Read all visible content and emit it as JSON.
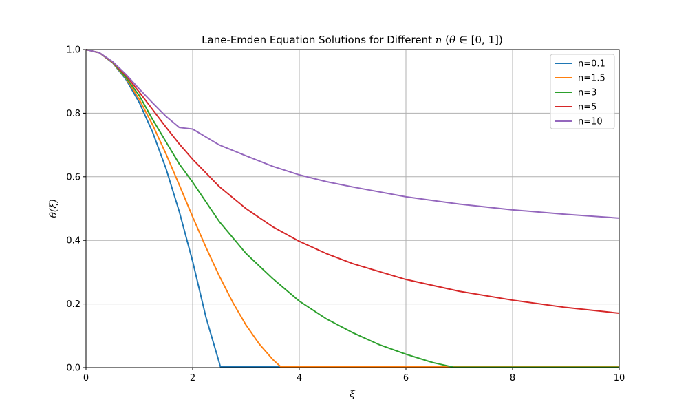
{
  "chart_data": {
    "type": "line",
    "title": "Lane-Emden Equation Solutions for Different n (θ ∈ [0, 1])",
    "title_parts": {
      "main": "Lane-Emden Equation Solutions for Different ",
      "var": "n",
      "range_open": " (",
      "theta": "θ",
      "range_close": " ∈ [0, 1])"
    },
    "xlabel": "ξ",
    "ylabel": "θ(ξ)",
    "xlim": [
      0,
      10
    ],
    "ylim": [
      0,
      1
    ],
    "xticks": [
      "0",
      "2",
      "4",
      "6",
      "8",
      "10"
    ],
    "yticks": [
      "0.0",
      "0.2",
      "0.4",
      "0.6",
      "0.8",
      "1.0"
    ],
    "grid": true,
    "legend_position": "top-right",
    "series": [
      {
        "name": "n=0.1",
        "color": "#1f77b4",
        "x": [
          0,
          0.25,
          0.5,
          0.75,
          1.0,
          1.25,
          1.5,
          1.75,
          2.0,
          2.25,
          2.5,
          2.52,
          3,
          4,
          5,
          6,
          7,
          8,
          9,
          10
        ],
        "y": [
          1.0,
          0.99,
          0.958,
          0.906,
          0.833,
          0.74,
          0.626,
          0.49,
          0.334,
          0.158,
          0.015,
          0.003,
          0.003,
          0.003,
          0.003,
          0.003,
          0.003,
          0.003,
          0.003,
          0.003
        ]
      },
      {
        "name": "n=1.5",
        "color": "#ff7f0e",
        "x": [
          0,
          0.25,
          0.5,
          0.75,
          1.0,
          1.25,
          1.5,
          1.75,
          2.0,
          2.25,
          2.5,
          2.75,
          3.0,
          3.25,
          3.5,
          3.65,
          4,
          5,
          6,
          7,
          8,
          9,
          10
        ],
        "y": [
          1.0,
          0.99,
          0.959,
          0.91,
          0.843,
          0.763,
          0.672,
          0.574,
          0.474,
          0.378,
          0.288,
          0.206,
          0.134,
          0.074,
          0.026,
          0.003,
          0.003,
          0.003,
          0.003,
          0.003,
          0.003,
          0.003,
          0.003
        ]
      },
      {
        "name": "n=3",
        "color": "#2ca02c",
        "x": [
          0,
          0.25,
          0.5,
          0.75,
          1.0,
          1.25,
          1.5,
          1.75,
          2.0,
          2.5,
          3.0,
          3.5,
          4.0,
          4.5,
          5.0,
          5.5,
          6.0,
          6.5,
          6.9,
          7,
          8,
          9,
          10
        ],
        "y": [
          1.0,
          0.99,
          0.96,
          0.912,
          0.855,
          0.78,
          0.71,
          0.64,
          0.583,
          0.459,
          0.359,
          0.28,
          0.209,
          0.154,
          0.11,
          0.072,
          0.042,
          0.016,
          0.001,
          0.001,
          0.001,
          0.001,
          0.001
        ]
      },
      {
        "name": "n=5",
        "color": "#d62728",
        "x": [
          0,
          0.25,
          0.5,
          0.75,
          1.0,
          1.25,
          1.5,
          1.75,
          2.0,
          2.5,
          3.0,
          3.5,
          4.0,
          4.5,
          5.0,
          6.0,
          7.0,
          8.0,
          9.0,
          10.0
        ],
        "y": [
          1.0,
          0.99,
          0.961,
          0.918,
          0.866,
          0.811,
          0.756,
          0.703,
          0.655,
          0.569,
          0.5,
          0.443,
          0.397,
          0.359,
          0.327,
          0.277,
          0.24,
          0.212,
          0.189,
          0.171
        ]
      },
      {
        "name": "n=10",
        "color": "#9467bd",
        "x": [
          0,
          0.25,
          0.5,
          0.75,
          1.0,
          1.25,
          1.5,
          1.75,
          2.0,
          2.5,
          3.0,
          3.5,
          4.0,
          4.5,
          5.0,
          6.0,
          7.0,
          8.0,
          9.0,
          10.0
        ],
        "y": [
          1.0,
          0.99,
          0.962,
          0.922,
          0.876,
          0.832,
          0.79,
          0.755,
          0.75,
          0.7,
          0.666,
          0.633,
          0.606,
          0.585,
          0.568,
          0.537,
          0.514,
          0.496,
          0.482,
          0.47
        ]
      }
    ]
  }
}
